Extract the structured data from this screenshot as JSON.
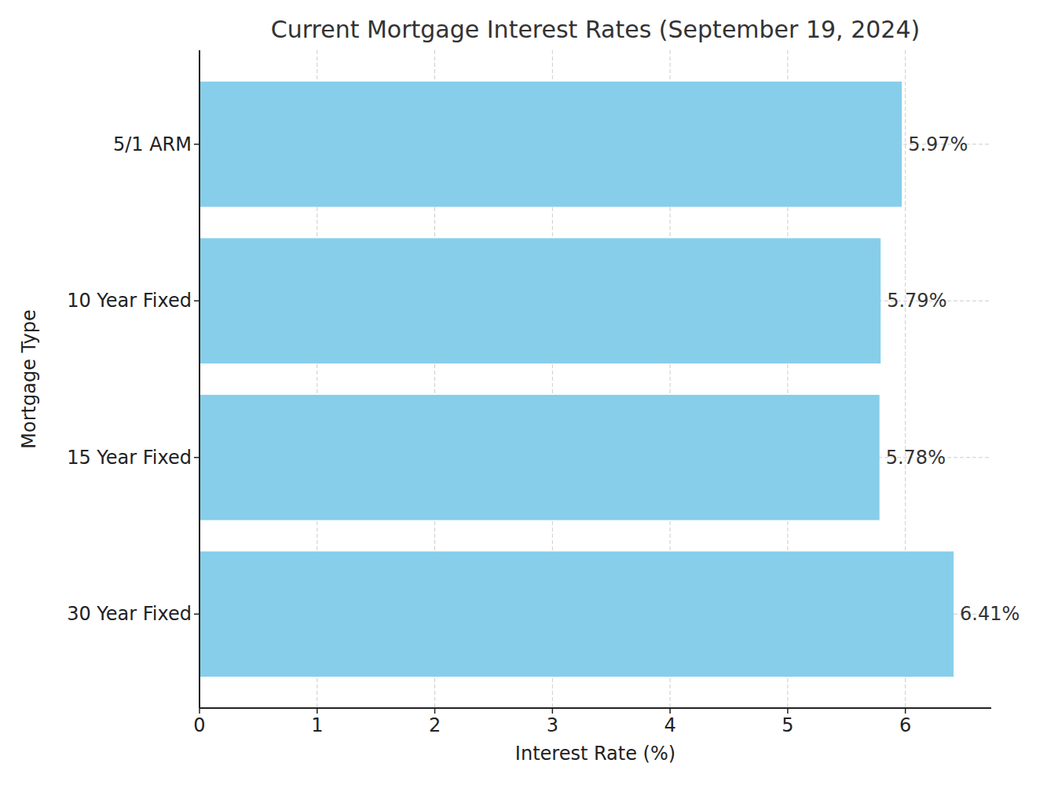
{
  "chart_data": {
    "type": "bar",
    "orientation": "horizontal",
    "title": "Current Mortgage Interest Rates (September 19, 2024)",
    "x_label": "Interest Rate (%)",
    "y_label": "Mortgage Type",
    "categories": [
      "30 Year Fixed",
      "15 Year Fixed",
      "10 Year Fixed",
      "5/1 ARM"
    ],
    "values": [
      6.41,
      5.78,
      5.79,
      5.97
    ],
    "value_labels": [
      "6.41%",
      "5.78%",
      "5.79%",
      "5.97%"
    ],
    "color": "#87ceeb",
    "xlim": [
      0,
      6.73
    ],
    "xticks": [
      0,
      1,
      2,
      3,
      4,
      5,
      6
    ],
    "grid": true,
    "data_labels": true
  }
}
